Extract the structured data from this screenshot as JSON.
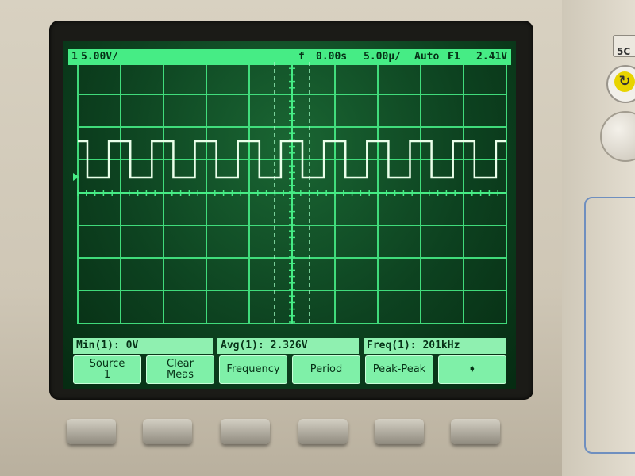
{
  "header": {
    "channel_marker": "1",
    "scale": "5.00V/",
    "trigger_marker": "f",
    "time_pos": "0.00s",
    "time_scale": "5.00μ/",
    "trigger_mode": "Auto",
    "trigger_source": "₣1",
    "trigger_level": "2.41V"
  },
  "measurements": {
    "min": "Min(1):  0V",
    "avg": "Avg(1):  2.326V",
    "freq": "Freq(1):  201kHz"
  },
  "softkeys": {
    "source_line1": "Source",
    "source_line2": "1",
    "clear_line1": "Clear",
    "clear_line2": "Meas",
    "frequency": "Frequency",
    "period": "Period",
    "peakpeak": "Peak-Peak",
    "next": "➧"
  },
  "panel": {
    "label_fragment": "5C"
  },
  "colors": {
    "phosphor": "#46ec85",
    "screen_bg": "#0d4220",
    "trace": "#eaffea"
  }
}
